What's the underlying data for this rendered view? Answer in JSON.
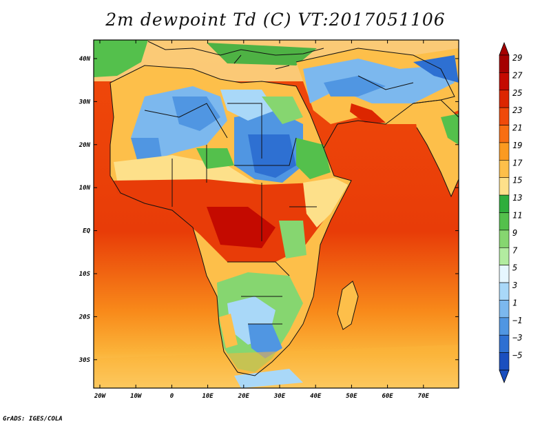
{
  "title": "2m dewpoint Td (C) VT:2017051106",
  "credit": "GrADS: IGES/COLA",
  "map": {
    "projection": "lat-lon",
    "region": "Africa and Arabian Sea / Indian Ocean",
    "lon_range": [
      -22,
      80
    ],
    "lat_range": [
      -37,
      45
    ],
    "variable": "2m dewpoint temperature",
    "units": "C",
    "valid_time": "2017051106",
    "x_ticks": [
      "20W",
      "10W",
      "0",
      "10E",
      "20E",
      "30E",
      "40E",
      "50E",
      "60E",
      "70E"
    ],
    "y_ticks": [
      "40N",
      "30N",
      "20N",
      "10N",
      "EQ",
      "10S",
      "20S",
      "30S"
    ]
  },
  "colorbar": {
    "labels": [
      "29",
      "27",
      "25",
      "23",
      "21",
      "19",
      "17",
      "15",
      "13",
      "11",
      "9",
      "7",
      "5",
      "3",
      "1",
      "−1",
      "−3",
      "−5"
    ],
    "colors": [
      "#a50000",
      "#c40a00",
      "#dc2600",
      "#f04a0a",
      "#f86e12",
      "#fb9a20",
      "#fdbf4a",
      "#fde08a",
      "#2fae3c",
      "#54c04c",
      "#86d670",
      "#b2eca0",
      "#e6f7ff",
      "#a9d8f8",
      "#7cb8ee",
      "#5096e2",
      "#2e70d2",
      "#1a4fbf"
    ]
  }
}
